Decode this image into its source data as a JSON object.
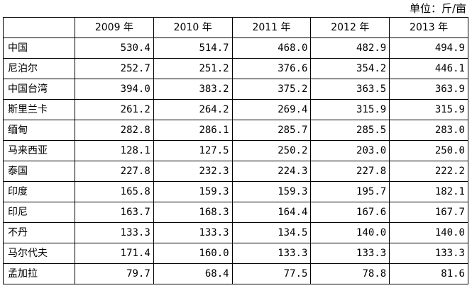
{
  "unit_label": "单位：斤/亩",
  "table": {
    "corner": "",
    "columns": [
      "2009 年",
      "2010 年",
      "2011 年",
      "2012 年",
      "2013 年"
    ],
    "rows": [
      {
        "name": "中国",
        "values": [
          "530.4",
          "514.7",
          "468.0",
          "482.9",
          "494.9"
        ]
      },
      {
        "name": "尼泊尔",
        "values": [
          "252.7",
          "251.2",
          "376.6",
          "354.2",
          "446.1"
        ]
      },
      {
        "name": "中国台湾",
        "values": [
          "394.0",
          "383.2",
          "375.2",
          "363.5",
          "363.9"
        ]
      },
      {
        "name": "斯里兰卡",
        "values": [
          "261.2",
          "264.2",
          "269.4",
          "315.9",
          "315.9"
        ]
      },
      {
        "name": "缅甸",
        "values": [
          "282.8",
          "286.1",
          "285.7",
          "285.5",
          "283.0"
        ]
      },
      {
        "name": "马来西亚",
        "values": [
          "128.1",
          "127.5",
          "250.2",
          "203.0",
          "250.0"
        ]
      },
      {
        "name": "泰国",
        "values": [
          "227.8",
          "232.3",
          "224.3",
          "227.8",
          "222.2"
        ]
      },
      {
        "name": "印度",
        "values": [
          "165.8",
          "159.3",
          "159.3",
          "195.7",
          "182.1"
        ]
      },
      {
        "name": "印尼",
        "values": [
          "163.7",
          "168.3",
          "164.4",
          "167.6",
          "167.7"
        ]
      },
      {
        "name": "不丹",
        "values": [
          "133.3",
          "133.3",
          "134.5",
          "140.0",
          "140.0"
        ]
      },
      {
        "name": "马尔代夫",
        "values": [
          "171.4",
          "160.0",
          "133.3",
          "133.3",
          "133.3"
        ]
      },
      {
        "name": "孟加拉",
        "values": [
          "79.7",
          "68.4",
          "77.5",
          "78.8",
          "81.6"
        ]
      }
    ]
  }
}
